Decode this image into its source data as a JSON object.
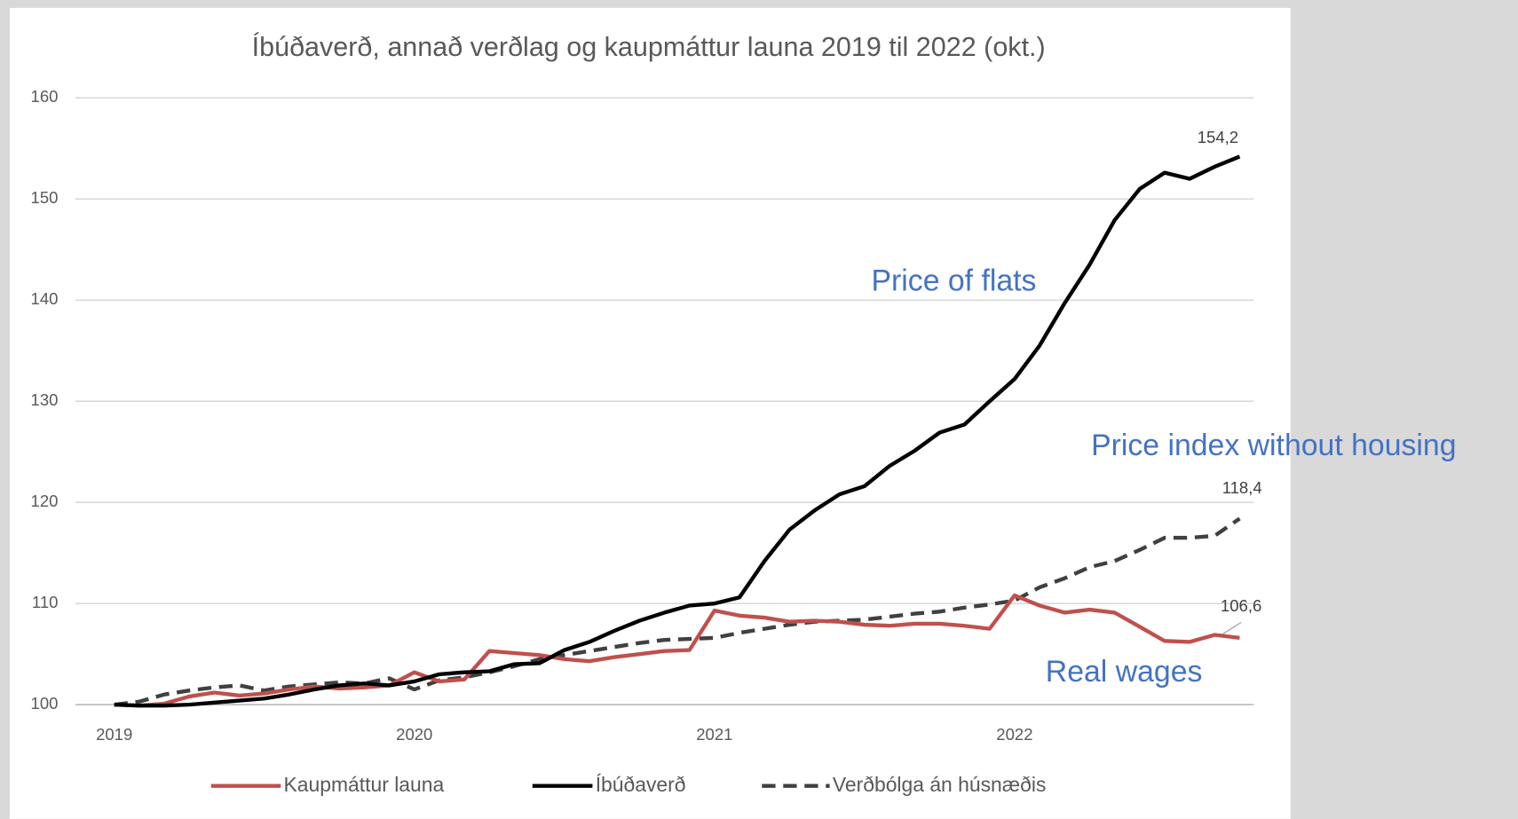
{
  "chart_data": {
    "type": "line",
    "title": "Íbúðaverð, annað verðlag og kaupmáttur launa 2019 til 2022 (okt.)",
    "categories": [
      "2019",
      null,
      null,
      null,
      null,
      null,
      null,
      null,
      null,
      null,
      null,
      null,
      "2020",
      null,
      null,
      null,
      null,
      null,
      null,
      null,
      null,
      null,
      null,
      null,
      "2021",
      null,
      null,
      null,
      null,
      null,
      null,
      null,
      null,
      null,
      null,
      null,
      "2022",
      null,
      null,
      null,
      null,
      null,
      null,
      null,
      null,
      null
    ],
    "ylim": [
      100,
      160
    ],
    "yticks": [
      100,
      110,
      120,
      130,
      140,
      150,
      160
    ],
    "grid": true,
    "legend": "bottom",
    "series": [
      {
        "name": "Kaupmáttur launa",
        "color": "#c0504d",
        "dashed": false,
        "values": [
          100,
          99.9,
          100.1,
          100.8,
          101.2,
          100.9,
          101.1,
          101.5,
          101.8,
          101.6,
          101.7,
          101.9,
          103.2,
          102.3,
          102.5,
          105.3,
          105.1,
          104.9,
          104.5,
          104.3,
          104.7,
          105,
          105.3,
          105.4,
          109.3,
          108.8,
          108.6,
          108.2,
          108.3,
          108.2,
          107.9,
          107.8,
          108,
          108,
          107.8,
          107.5,
          110.8,
          109.8,
          109.1,
          109.4,
          109.1,
          107.7,
          106.3,
          106.2,
          106.9,
          106.6
        ],
        "value_labels": [
          null,
          null,
          null,
          null,
          null,
          null,
          null,
          null,
          null,
          null,
          null,
          null,
          null,
          null,
          null,
          null,
          null,
          null,
          null,
          null,
          null,
          null,
          null,
          null,
          null,
          null,
          null,
          null,
          null,
          null,
          null,
          null,
          null,
          null,
          null,
          null,
          null,
          null,
          null,
          null,
          null,
          null,
          null,
          null,
          null,
          "106,6"
        ]
      },
      {
        "name": "Íbúðaverð",
        "color": "#000000",
        "dashed": false,
        "values": [
          100,
          99.9,
          99.9,
          100,
          100.2,
          100.4,
          100.6,
          101,
          101.5,
          101.9,
          102.1,
          101.9,
          102.3,
          103,
          103.2,
          103.3,
          104,
          104.1,
          105.4,
          106.2,
          107.3,
          108.3,
          109.1,
          109.8,
          110,
          110.6,
          114.2,
          117.3,
          119.2,
          120.8,
          121.6,
          123.6,
          125.1,
          126.9,
          127.7,
          130,
          132.2,
          135.5,
          139.7,
          143.5,
          147.9,
          151,
          152.6,
          152,
          153.2,
          154.2
        ],
        "value_labels": [
          null,
          null,
          null,
          null,
          null,
          null,
          null,
          null,
          null,
          null,
          null,
          null,
          null,
          null,
          null,
          null,
          null,
          null,
          null,
          null,
          null,
          null,
          null,
          null,
          null,
          null,
          null,
          null,
          null,
          null,
          null,
          null,
          null,
          null,
          null,
          null,
          null,
          null,
          null,
          null,
          null,
          null,
          null,
          null,
          null,
          "154,2"
        ]
      },
      {
        "name": "Verðbólga án húsnæðis",
        "color": "#404040",
        "dashed": true,
        "values": [
          100,
          100.3,
          101,
          101.4,
          101.7,
          101.9,
          101.4,
          101.8,
          102,
          102.2,
          102.1,
          102.6,
          101.5,
          102.4,
          102.7,
          103.2,
          103.8,
          104.5,
          104.9,
          105.3,
          105.7,
          106.1,
          106.4,
          106.5,
          106.6,
          107.1,
          107.5,
          107.9,
          108.2,
          108.3,
          108.4,
          108.7,
          109,
          109.2,
          109.6,
          109.9,
          110.3,
          111.6,
          112.5,
          113.6,
          114.2,
          115.3,
          116.5,
          116.5,
          116.7,
          118.4
        ],
        "value_labels": [
          null,
          null,
          null,
          null,
          null,
          null,
          null,
          null,
          null,
          null,
          null,
          null,
          null,
          null,
          null,
          null,
          null,
          null,
          null,
          null,
          null,
          null,
          null,
          null,
          null,
          null,
          null,
          null,
          null,
          null,
          null,
          null,
          null,
          null,
          null,
          null,
          null,
          null,
          null,
          null,
          null,
          null,
          null,
          null,
          null,
          "118,4"
        ]
      }
    ],
    "annotations": [
      "Price of flats",
      "Price index without housing",
      "Real wages"
    ]
  }
}
